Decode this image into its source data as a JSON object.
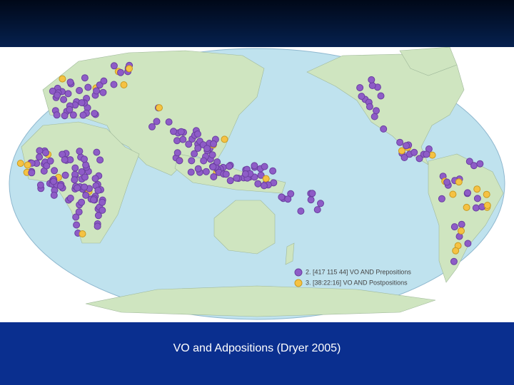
{
  "legend": [
    {
      "label": "2. [417 115 44] VO AND Prepositions"
    },
    {
      "label": "3. [38:22:16] VO AND Postpositions"
    }
  ],
  "caption": "VO and Adpositions (Dryer 2005)"
}
